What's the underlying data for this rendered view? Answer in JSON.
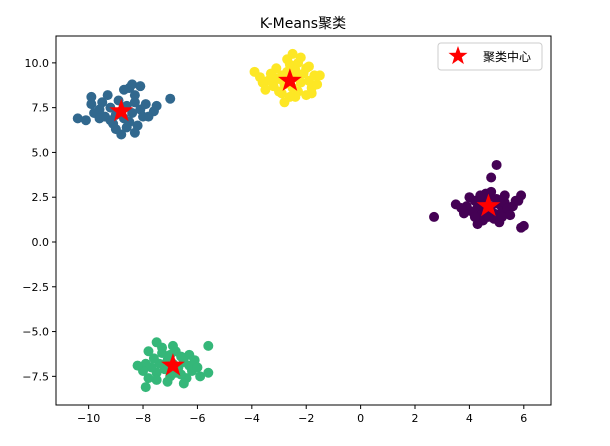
{
  "chart_data": {
    "type": "scatter",
    "title": "K-Means聚类",
    "xlabel": "",
    "ylabel": "",
    "xlim": [
      -11.2,
      7.0
    ],
    "ylim": [
      -9.1,
      11.5
    ],
    "xticks": [
      -10,
      -8,
      -6,
      -4,
      -2,
      0,
      2,
      4,
      6
    ],
    "yticks": [
      -7.5,
      -5.0,
      -2.5,
      0.0,
      2.5,
      5.0,
      7.5,
      10.0
    ],
    "xtick_labels": [
      "−10",
      "−8",
      "−6",
      "−4",
      "−2",
      "0",
      "2",
      "4",
      "6"
    ],
    "ytick_labels": [
      "−7.5",
      "−5.0",
      "−2.5",
      "0.0",
      "2.5",
      "5.0",
      "7.5",
      "10.0"
    ],
    "grid": false,
    "legend": {
      "position": "top-right",
      "entries": [
        "聚类中心"
      ]
    },
    "clusters": [
      {
        "color": "#440154",
        "points": [
          [
            4.6,
            1.8
          ],
          [
            4.8,
            2.0
          ],
          [
            4.5,
            2.2
          ],
          [
            4.9,
            1.6
          ],
          [
            5.1,
            2.1
          ],
          [
            4.3,
            1.9
          ],
          [
            4.7,
            2.5
          ],
          [
            5.2,
            1.7
          ],
          [
            4.4,
            1.5
          ],
          [
            5.0,
            2.4
          ],
          [
            4.2,
            2.3
          ],
          [
            5.3,
            2.2
          ],
          [
            4.9,
            1.3
          ],
          [
            4.5,
            1.2
          ],
          [
            5.4,
            1.9
          ],
          [
            4.1,
            1.7
          ],
          [
            4.6,
            2.7
          ],
          [
            5.6,
            2.0
          ],
          [
            3.9,
            2.0
          ],
          [
            5.1,
            1.1
          ],
          [
            4.0,
            2.5
          ],
          [
            5.5,
            1.5
          ],
          [
            4.8,
            2.8
          ],
          [
            3.8,
            1.6
          ],
          [
            5.7,
            2.3
          ],
          [
            4.3,
            1.0
          ],
          [
            5.9,
            2.6
          ],
          [
            5.8,
            2.3
          ],
          [
            4.8,
            3.6
          ],
          [
            5.0,
            4.3
          ],
          [
            3.5,
            2.1
          ],
          [
            2.7,
            1.4
          ],
          [
            5.9,
            0.8
          ],
          [
            6.0,
            0.9
          ],
          [
            4.2,
            1.4
          ],
          [
            4.7,
            1.4
          ],
          [
            5.3,
            2.6
          ],
          [
            4.4,
            2.6
          ],
          [
            5.2,
            1.4
          ],
          [
            3.7,
            1.9
          ]
        ]
      },
      {
        "color": "#31688e",
        "points": [
          [
            -8.8,
            7.3
          ],
          [
            -8.6,
            7.6
          ],
          [
            -9.0,
            7.1
          ],
          [
            -8.4,
            7.2
          ],
          [
            -9.2,
            7.5
          ],
          [
            -8.7,
            6.9
          ],
          [
            -8.3,
            7.8
          ],
          [
            -9.4,
            7.0
          ],
          [
            -8.9,
            7.9
          ],
          [
            -8.5,
            6.7
          ],
          [
            -9.6,
            7.4
          ],
          [
            -8.1,
            7.4
          ],
          [
            -9.1,
            6.6
          ],
          [
            -8.3,
            8.2
          ],
          [
            -9.5,
            7.8
          ],
          [
            -8.0,
            7.0
          ],
          [
            -8.7,
            8.5
          ],
          [
            -9.8,
            7.2
          ],
          [
            -8.6,
            6.4
          ],
          [
            -7.9,
            7.7
          ],
          [
            -9.3,
            8.2
          ],
          [
            -8.2,
            6.5
          ],
          [
            -9.9,
            7.7
          ],
          [
            -8.5,
            8.6
          ],
          [
            -8.8,
            6.0
          ],
          [
            -8.3,
            6.1
          ],
          [
            -7.6,
            7.3
          ],
          [
            -9.9,
            8.1
          ],
          [
            -9.6,
            6.9
          ],
          [
            -10.4,
            6.9
          ],
          [
            -10.1,
            6.8
          ],
          [
            -7.0,
            8.0
          ],
          [
            -8.1,
            8.7
          ],
          [
            -9.0,
            6.3
          ],
          [
            -7.8,
            7.0
          ],
          [
            -7.5,
            7.6
          ],
          [
            -9.2,
            6.8
          ],
          [
            -8.4,
            8.8
          ]
        ]
      },
      {
        "color": "#35b779",
        "points": [
          [
            -6.9,
            -6.8
          ],
          [
            -6.7,
            -7.0
          ],
          [
            -7.1,
            -6.6
          ],
          [
            -6.5,
            -6.7
          ],
          [
            -7.2,
            -7.1
          ],
          [
            -6.8,
            -7.3
          ],
          [
            -6.3,
            -6.9
          ],
          [
            -7.4,
            -6.8
          ],
          [
            -6.6,
            -6.4
          ],
          [
            -7.0,
            -7.5
          ],
          [
            -6.2,
            -7.2
          ],
          [
            -7.5,
            -7.3
          ],
          [
            -6.4,
            -7.6
          ],
          [
            -7.6,
            -6.5
          ],
          [
            -6.1,
            -6.6
          ],
          [
            -7.3,
            -6.2
          ],
          [
            -6.8,
            -6.1
          ],
          [
            -7.7,
            -7.0
          ],
          [
            -6.0,
            -7.0
          ],
          [
            -7.1,
            -7.8
          ],
          [
            -7.9,
            -6.8
          ],
          [
            -5.9,
            -7.5
          ],
          [
            -7.5,
            -7.7
          ],
          [
            -6.5,
            -7.9
          ],
          [
            -7.8,
            -6.1
          ],
          [
            -8.0,
            -7.2
          ],
          [
            -7.8,
            -7.6
          ],
          [
            -7.3,
            -5.9
          ],
          [
            -6.9,
            -5.8
          ],
          [
            -7.5,
            -5.6
          ],
          [
            -7.9,
            -8.1
          ],
          [
            -5.6,
            -7.3
          ],
          [
            -5.6,
            -5.8
          ],
          [
            -8.2,
            -6.9
          ],
          [
            -6.6,
            -7.4
          ],
          [
            -7.0,
            -6.3
          ],
          [
            -6.3,
            -6.3
          ]
        ]
      },
      {
        "color": "#fde725",
        "points": [
          [
            -2.6,
            9.0
          ],
          [
            -2.4,
            9.2
          ],
          [
            -2.8,
            8.8
          ],
          [
            -2.2,
            8.9
          ],
          [
            -3.0,
            9.1
          ],
          [
            -2.5,
            8.6
          ],
          [
            -2.1,
            9.4
          ],
          [
            -3.2,
            8.7
          ],
          [
            -2.7,
            9.5
          ],
          [
            -2.3,
            8.4
          ],
          [
            -3.4,
            9.0
          ],
          [
            -1.9,
            9.0
          ],
          [
            -2.9,
            8.3
          ],
          [
            -2.0,
            9.7
          ],
          [
            -3.3,
            9.4
          ],
          [
            -1.8,
            8.6
          ],
          [
            -2.6,
            9.9
          ],
          [
            -3.6,
            8.9
          ],
          [
            -2.4,
            8.1
          ],
          [
            -1.7,
            9.3
          ],
          [
            -3.1,
            9.7
          ],
          [
            -2.0,
            8.2
          ],
          [
            -3.7,
            9.2
          ],
          [
            -2.3,
            10.0
          ],
          [
            -2.7,
            10.2
          ],
          [
            -1.6,
            8.8
          ],
          [
            -3.5,
            8.5
          ],
          [
            -1.5,
            9.3
          ],
          [
            -1.8,
            8.3
          ],
          [
            -2.5,
            10.5
          ],
          [
            -2.2,
            10.3
          ],
          [
            -3.9,
            9.5
          ],
          [
            -2.8,
            7.8
          ],
          [
            -2.6,
            8.1
          ],
          [
            -3.0,
            8.4
          ],
          [
            -1.9,
            9.8
          ],
          [
            -2.4,
            9.6
          ],
          [
            -3.2,
            9.2
          ],
          [
            -2.9,
            9.3
          ]
        ]
      }
    ],
    "centers": {
      "name": "聚类中心",
      "color": "#ff0000",
      "points": [
        [
          4.7,
          2.0
        ],
        [
          -8.8,
          7.3
        ],
        [
          -6.9,
          -6.9
        ],
        [
          -2.6,
          9.0
        ]
      ]
    }
  }
}
